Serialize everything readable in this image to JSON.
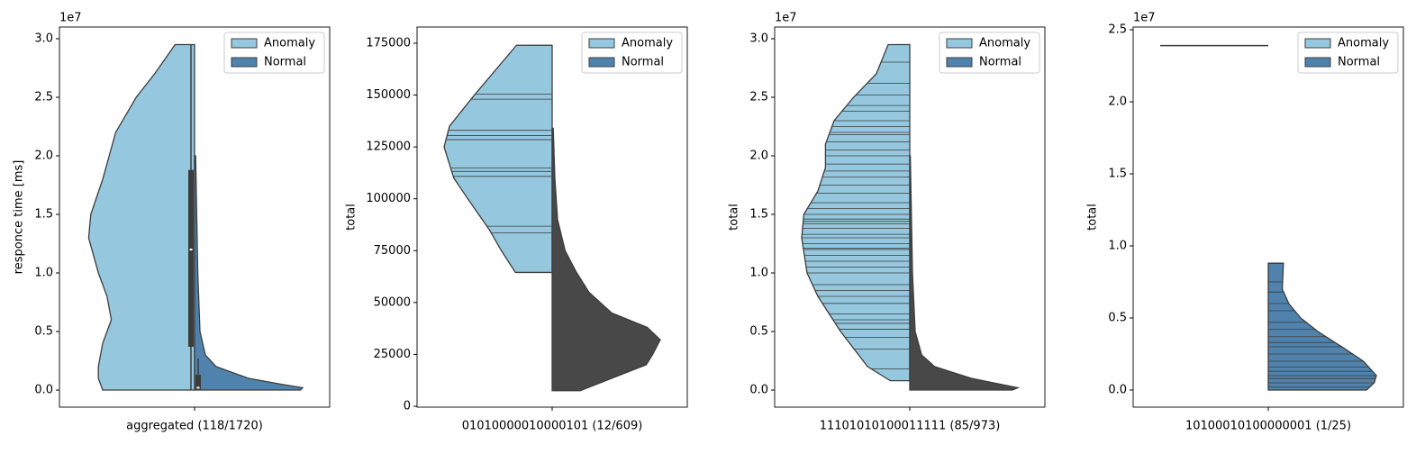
{
  "chart_data": [
    {
      "type": "violin",
      "inner": "box",
      "ylabel": "responce time [ms]",
      "offset_text": "1e7",
      "categories": [
        "aggregated (118/1720)"
      ],
      "ylim": [
        -0.146,
        3.1
      ],
      "yticks": [
        {
          "value": 0,
          "label": "0.0"
        },
        {
          "value": 0.5,
          "label": "0.5"
        },
        {
          "value": 1,
          "label": "1.0"
        },
        {
          "value": 1.5,
          "label": "1.5"
        },
        {
          "value": 2,
          "label": "2.0"
        },
        {
          "value": 2.5,
          "label": "2.5"
        },
        {
          "value": 3,
          "label": "3.0"
        }
      ],
      "legend": "upper right",
      "series": [
        {
          "name": "Anomaly",
          "color": "#95c8df",
          "side": "left",
          "y": [
            0,
            0.1,
            0.2,
            0.4,
            0.6,
            0.8,
            1.0,
            1.3,
            1.5,
            1.8,
            2.0,
            2.2,
            2.5,
            2.7,
            2.95
          ],
          "width": [
            0.85,
            0.89,
            0.89,
            0.85,
            0.77,
            0.81,
            0.89,
            0.98,
            0.96,
            0.85,
            0.79,
            0.73,
            0.54,
            0.37,
            0.18
          ],
          "box": {
            "whislo": 0,
            "q1": 0.37,
            "med": 1.2,
            "q3": 1.88,
            "whishi": 2.95
          }
        },
        {
          "name": "Normal",
          "color": "#4f82ad",
          "side": "right",
          "y": [
            0,
            0.02,
            0.05,
            0.1,
            0.2,
            0.3,
            0.5,
            1.0,
            2.0
          ],
          "width": [
            0.98,
            1.0,
            0.8,
            0.5,
            0.2,
            0.1,
            0.05,
            0.03,
            0.01
          ],
          "box": {
            "whislo": 0,
            "q1": 0,
            "med": 0.02,
            "q3": 0.13,
            "whishi": 0.27
          }
        }
      ]
    },
    {
      "type": "violin",
      "inner": "stick",
      "ylabel": "total",
      "categories": [
        "01010000010000101 (12/609)"
      ],
      "ylim": [
        -434,
        182800
      ],
      "yticks": [
        0,
        25000,
        50000,
        75000,
        100000,
        125000,
        150000,
        175000
      ],
      "legend": "upper right",
      "series": [
        {
          "name": "Anomaly",
          "color": "#95c8df",
          "side": "left",
          "y": [
            64500,
            75000,
            85000,
            100000,
            110000,
            125000,
            135000,
            150000,
            174000
          ],
          "width": [
            0.34,
            0.47,
            0.58,
            0.78,
            0.91,
            1.0,
            0.95,
            0.72,
            0.33
          ],
          "sticks": [
            64500,
            83600,
            86800,
            110800,
            113200,
            114800,
            128500,
            130500,
            133000,
            148000,
            150500,
            174000
          ]
        },
        {
          "name": "Normal",
          "color": "#4f82ad",
          "side": "right",
          "inner_color": "#484848",
          "y": [
            7500,
            10000,
            20000,
            25000,
            32000,
            38000,
            45000,
            55000,
            65000,
            75000,
            90000,
            110000,
            134000
          ],
          "width": [
            0.26,
            0.38,
            0.87,
            0.93,
            1.0,
            0.88,
            0.55,
            0.34,
            0.22,
            0.12,
            0.05,
            0.025,
            0.01
          ]
        }
      ]
    },
    {
      "type": "violin",
      "inner": "stick",
      "ylabel": "total",
      "offset_text": "1e7",
      "categories": [
        "11101010100011111 (85/973)"
      ],
      "ylim": [
        -0.146,
        3.1
      ],
      "yticks": [
        {
          "value": 0,
          "label": "0.0"
        },
        {
          "value": 0.5,
          "label": "0.5"
        },
        {
          "value": 1,
          "label": "1.0"
        },
        {
          "value": 1.5,
          "label": "1.5"
        },
        {
          "value": 2,
          "label": "2.0"
        },
        {
          "value": 2.5,
          "label": "2.5"
        },
        {
          "value": 3,
          "label": "3.0"
        }
      ],
      "legend": "upper right",
      "series": [
        {
          "name": "Anomaly",
          "color": "#95c8df",
          "side": "left",
          "y": [
            0.08,
            0.2,
            0.5,
            0.8,
            1.0,
            1.3,
            1.5,
            1.7,
            1.9,
            2.1,
            2.3,
            2.5,
            2.7,
            2.95
          ],
          "width": [
            0.18,
            0.39,
            0.64,
            0.85,
            0.95,
            1.0,
            0.98,
            0.85,
            0.78,
            0.78,
            0.7,
            0.52,
            0.31,
            0.2
          ],
          "sticks": [
            0.18,
            0.35,
            0.45,
            0.52,
            0.57,
            0.6,
            0.65,
            0.74,
            0.8,
            0.85,
            0.9,
            1.0,
            1.05,
            1.1,
            1.15,
            1.2,
            1.21,
            1.25,
            1.3,
            1.33,
            1.38,
            1.42,
            1.44,
            1.46,
            1.5,
            1.55,
            1.6,
            1.68,
            1.75,
            1.82,
            1.87,
            1.93,
            2.0,
            2.05,
            2.12,
            2.18,
            2.2,
            2.25,
            2.3,
            2.38,
            2.43,
            2.52,
            2.62,
            2.8
          ]
        },
        {
          "name": "Normal",
          "color": "#4f82ad",
          "side": "right",
          "inner_color": "#484848",
          "y": [
            0,
            0.02,
            0.1,
            0.2,
            0.3,
            0.5,
            1.0,
            2.0
          ],
          "width": [
            0.95,
            1.0,
            0.57,
            0.23,
            0.11,
            0.05,
            0.025,
            0.005
          ]
        }
      ]
    },
    {
      "type": "violin",
      "inner": "stick",
      "ylabel": "total",
      "offset_text": "1e7",
      "categories": [
        "10100010100000001 (1/25)"
      ],
      "ylim": [
        -0.119,
        2.519
      ],
      "yticks": [
        {
          "value": 0,
          "label": "0.0"
        },
        {
          "value": 0.5,
          "label": "0.5"
        },
        {
          "value": 1,
          "label": "1.0"
        },
        {
          "value": 1.5,
          "label": "1.5"
        },
        {
          "value": 2,
          "label": "2.0"
        },
        {
          "value": 2.5,
          "label": "2.5"
        }
      ],
      "legend": "upper right",
      "series": [
        {
          "name": "Anomaly",
          "color": "#95c8df",
          "side": "left",
          "y": [
            2.39
          ],
          "width": [
            1.0
          ],
          "sticks": [
            2.39
          ]
        },
        {
          "name": "Normal",
          "color": "#4f82ad",
          "side": "right",
          "y": [
            0,
            0.05,
            0.1,
            0.2,
            0.3,
            0.4,
            0.5,
            0.6,
            0.7,
            0.88
          ],
          "width": [
            0.91,
            0.98,
            1.0,
            0.88,
            0.68,
            0.47,
            0.3,
            0.19,
            0.13,
            0.14
          ],
          "sticks": [
            0,
            0.02,
            0.05,
            0.08,
            0.1,
            0.13,
            0.16,
            0.2,
            0.25,
            0.3,
            0.33,
            0.37,
            0.42,
            0.47,
            0.55,
            0.6,
            0.68,
            0.75,
            0.88
          ]
        }
      ]
    }
  ]
}
